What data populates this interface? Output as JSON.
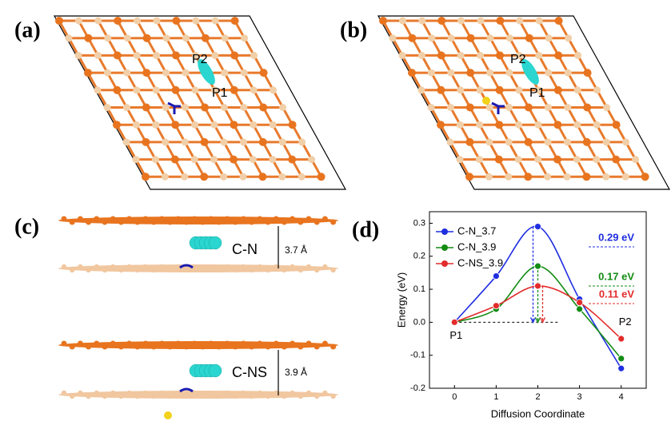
{
  "panels": [
    {
      "label": "(a)",
      "annotations": [
        "P2",
        "P1"
      ]
    },
    {
      "label": "(b)",
      "annotations": [
        "P2",
        "P1"
      ]
    },
    {
      "label": "(c)",
      "annotations": [
        "C-N",
        "3.7 Å",
        "C-NS",
        "3.9 Å"
      ]
    },
    {
      "label": "(d)"
    }
  ],
  "chart_data": {
    "type": "line",
    "x_label": "Diffusion Coordinate",
    "y_label": "Energy (eV)",
    "x": [
      0,
      1,
      2,
      3,
      4
    ],
    "series": [
      {
        "name": "C-N_3.7",
        "color": "#1f2ee0",
        "values": [
          0,
          0.14,
          0.29,
          0.07,
          -0.14
        ]
      },
      {
        "name": "C-N_3.9",
        "color": "#128c12",
        "values": [
          0,
          0.04,
          0.17,
          0.04,
          -0.11
        ]
      },
      {
        "name": "C-NS_3.9",
        "color": "#e32b2b",
        "values": [
          0,
          0.05,
          0.11,
          0.06,
          -0.05
        ]
      }
    ],
    "annotations": [
      "0.29 eV",
      "0.17 eV",
      "0.11 eV",
      "P1",
      "P2"
    ],
    "xlim": [
      -0.6,
      4.6
    ],
    "ylim": [
      -0.2,
      0.335
    ],
    "xticks": [
      0,
      1,
      2,
      3,
      4
    ],
    "yticks": [
      -0.2,
      -0.1,
      {
        "value": 0,
        "label": "0.0"
      },
      0.1,
      0.2,
      0.3
    ],
    "legend": "upper left"
  }
}
